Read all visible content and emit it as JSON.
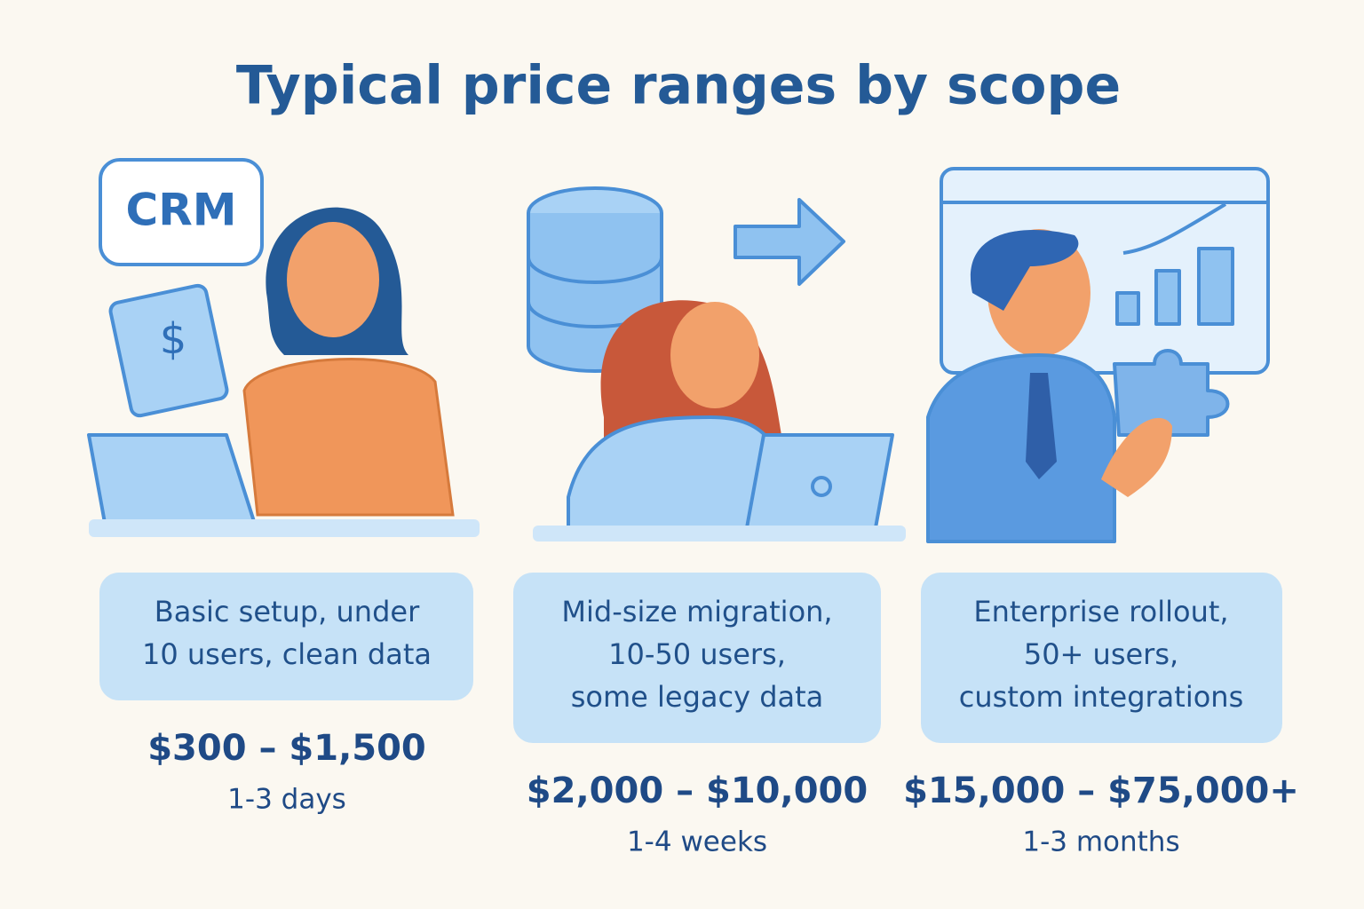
{
  "header": {
    "title": "Typical price ranges by scope"
  },
  "icons": {
    "crm": "CRM",
    "dollar": "$"
  },
  "tiers": [
    {
      "description": [
        "Basic setup, under",
        "10 users, clean data"
      ],
      "price": "$300 – $1,500",
      "duration": "1-3 days"
    },
    {
      "description": [
        "Mid-size migration,",
        "10-50 users,",
        "some legacy data"
      ],
      "price": "$2,000 – $10,000",
      "duration": "1-4 weeks"
    },
    {
      "description": [
        "Enterprise rollout,",
        "50+ users,",
        "custom integrations"
      ],
      "price": "$15,000 – $75,000+",
      "duration": "1-3 months"
    }
  ]
}
